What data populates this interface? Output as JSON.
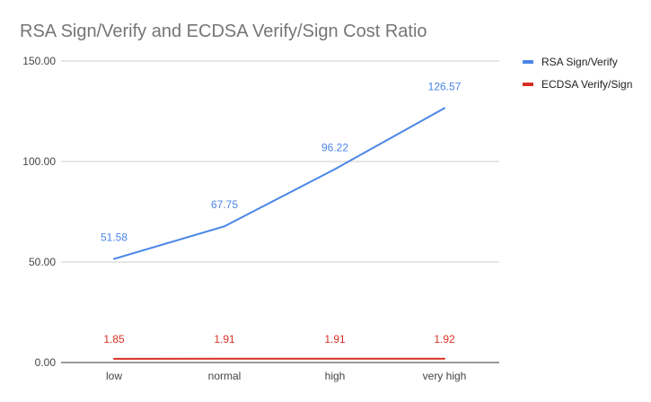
{
  "chart_data": {
    "type": "line",
    "title": "RSA Sign/Verify and ECDSA Verify/Sign Cost Ratio",
    "categories": [
      "low",
      "normal",
      "high",
      "very high"
    ],
    "ylim": [
      0,
      150
    ],
    "yticks": [
      0,
      50,
      100,
      150
    ],
    "ytick_labels": [
      "0.00",
      "50.00",
      "100.00",
      "150.00"
    ],
    "grid": true,
    "legend_position": "right",
    "series": [
      {
        "name": "RSA Sign/Verify",
        "color": "#4a86e8",
        "values": [
          51.58,
          67.75,
          96.22,
          126.57
        ],
        "labels": [
          "51.58",
          "67.75",
          "96.22",
          "126.57"
        ]
      },
      {
        "name": "ECDSA Verify/Sign",
        "color": "#d93025",
        "values": [
          1.85,
          1.91,
          1.91,
          1.92
        ],
        "labels": [
          "1.85",
          "1.91",
          "1.91",
          "1.92"
        ]
      }
    ]
  }
}
